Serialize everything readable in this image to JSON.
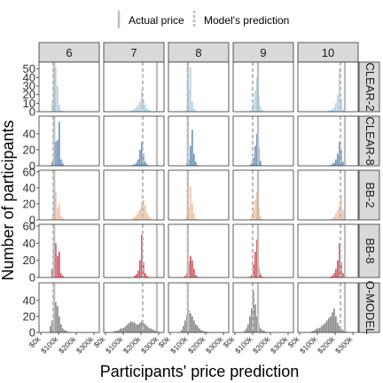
{
  "chart_data": {
    "type": "histogram",
    "title": "",
    "xlabel": "Participants' price prediction",
    "ylabel": "Number of participants",
    "legend": {
      "placement": "top",
      "entries": [
        {
          "label": "Actual price",
          "style": "solid",
          "color": "#bdbdbd"
        },
        {
          "label": "Model's prediction",
          "style": "dashed",
          "color": "#bdbdbd"
        }
      ]
    },
    "x_ticks": [
      {
        "value": 0,
        "label": "$0k"
      },
      {
        "value": 100,
        "label": "$100k"
      },
      {
        "value": 200,
        "label": "$200k"
      },
      {
        "value": 300,
        "label": "$300k"
      }
    ],
    "xlim": [
      -10,
      330
    ],
    "bin_width": 10,
    "columns": [
      "6",
      "7",
      "8",
      "9",
      "10"
    ],
    "rows": [
      {
        "label": "CLEAR-2",
        "color": "#b3d5e6",
        "ylim": [
          0,
          58
        ],
        "yticks": [
          0,
          10,
          20,
          30,
          40,
          50
        ]
      },
      {
        "label": "CLEAR-8",
        "color": "#6c97c1",
        "ylim": [
          0,
          62
        ],
        "yticks": [
          0,
          20,
          40
        ]
      },
      {
        "label": "BB-2",
        "color": "#f3c3a6",
        "ylim": [
          0,
          62
        ],
        "yticks": [
          0,
          20,
          40,
          60
        ]
      },
      {
        "label": "BB-8",
        "color": "#d95868",
        "ylim": [
          0,
          62
        ],
        "yticks": [
          0,
          20,
          40,
          60
        ]
      },
      {
        "label": "O-MODEL",
        "color": "#8c8c8c",
        "ylim": [
          0,
          62
        ],
        "yticks": [
          0,
          20,
          40
        ]
      }
    ],
    "actual_price": {
      "6": 76,
      "7": 290,
      "8": 100,
      "9": 130,
      "10": 255
    },
    "model_prediction": {
      "6": 70,
      "7": 210,
      "8": 98,
      "9": 100,
      "10": 230
    },
    "bins_start": [
      20,
      30,
      40,
      50,
      60,
      70,
      80,
      90,
      100,
      110,
      120,
      130,
      140,
      150,
      160,
      170,
      180,
      190,
      200,
      210,
      220,
      230,
      240,
      250,
      260,
      270,
      280,
      290,
      300,
      310
    ],
    "counts": {
      "CLEAR-2": {
        "6": [
          0,
          0,
          0,
          0,
          12,
          50,
          52,
          30,
          8,
          2,
          1,
          0,
          0,
          0,
          0,
          0,
          0,
          0,
          0,
          0,
          0,
          0,
          0,
          0,
          0,
          0,
          0,
          0,
          0,
          0
        ],
        "7": [
          0,
          0,
          0,
          1,
          0,
          0,
          0,
          0,
          0,
          0,
          0,
          0,
          1,
          2,
          3,
          5,
          8,
          12,
          25,
          15,
          8,
          4,
          2,
          1,
          0,
          0,
          0,
          0,
          0,
          0
        ],
        "8": [
          0,
          0,
          0,
          0,
          0,
          0,
          1,
          5,
          25,
          52,
          12,
          3,
          1,
          0,
          0,
          0,
          0,
          0,
          0,
          0,
          0,
          0,
          0,
          0,
          0,
          0,
          0,
          0,
          0,
          0
        ],
        "9": [
          0,
          0,
          0,
          0,
          0,
          0,
          1,
          3,
          10,
          25,
          40,
          18,
          6,
          2,
          0,
          0,
          0,
          0,
          0,
          0,
          0,
          0,
          0,
          0,
          0,
          0,
          0,
          0,
          0,
          0
        ],
        "10": [
          0,
          0,
          0,
          0,
          0,
          0,
          0,
          0,
          0,
          0,
          0,
          0,
          0,
          0,
          1,
          2,
          3,
          5,
          10,
          20,
          50,
          15,
          3,
          0,
          0,
          0,
          0,
          0,
          0,
          0
        ]
      },
      "CLEAR-8": {
        "6": [
          0,
          0,
          0,
          0,
          5,
          15,
          30,
          32,
          55,
          8,
          3,
          0,
          0,
          0,
          0,
          0,
          0,
          0,
          0,
          0,
          0,
          0,
          0,
          0,
          0,
          0,
          0,
          0,
          0,
          0
        ],
        "7": [
          0,
          0,
          0,
          0,
          0,
          0,
          0,
          0,
          0,
          0,
          0,
          0,
          0,
          1,
          2,
          4,
          8,
          20,
          30,
          15,
          5,
          2,
          0,
          0,
          0,
          0,
          0,
          0,
          0,
          0
        ],
        "8": [
          0,
          0,
          0,
          0,
          0,
          0,
          0,
          3,
          8,
          25,
          45,
          15,
          5,
          1,
          0,
          0,
          0,
          0,
          0,
          0,
          0,
          0,
          0,
          0,
          0,
          0,
          0,
          0,
          0,
          0
        ],
        "9": [
          0,
          0,
          0,
          0,
          0,
          0,
          1,
          3,
          10,
          25,
          40,
          22,
          6,
          0,
          0,
          0,
          0,
          0,
          0,
          0,
          0,
          0,
          0,
          0,
          0,
          0,
          0,
          0,
          0,
          0
        ],
        "10": [
          0,
          0,
          0,
          0,
          0,
          0,
          0,
          0,
          0,
          0,
          0,
          0,
          0,
          0,
          0,
          1,
          2,
          4,
          8,
          15,
          30,
          20,
          5,
          0,
          0,
          0,
          0,
          0,
          0,
          0
        ]
      },
      "BB-2": {
        "6": [
          0,
          0,
          0,
          0,
          3,
          8,
          35,
          15,
          20,
          5,
          2,
          0,
          0,
          0,
          0,
          0,
          0,
          0,
          0,
          0,
          0,
          0,
          0,
          0,
          0,
          0,
          0,
          0,
          0,
          0
        ],
        "7": [
          0,
          0,
          0,
          0,
          0,
          0,
          0,
          0,
          0,
          0,
          0,
          0,
          0,
          2,
          4,
          6,
          10,
          14,
          20,
          25,
          18,
          8,
          4,
          2,
          0,
          0,
          0,
          0,
          0,
          0
        ],
        "8": [
          0,
          0,
          0,
          0,
          0,
          0,
          1,
          5,
          15,
          42,
          20,
          8,
          2,
          0,
          0,
          0,
          0,
          0,
          0,
          0,
          0,
          0,
          0,
          0,
          0,
          0,
          0,
          0,
          0,
          0
        ],
        "9": [
          0,
          0,
          0,
          0,
          0,
          0,
          1,
          4,
          12,
          25,
          35,
          15,
          5,
          1,
          0,
          0,
          0,
          0,
          0,
          0,
          0,
          0,
          0,
          0,
          0,
          0,
          0,
          0,
          0,
          0
        ],
        "10": [
          0,
          0,
          0,
          0,
          0,
          0,
          0,
          0,
          0,
          0,
          0,
          0,
          0,
          0,
          0,
          1,
          2,
          4,
          8,
          12,
          18,
          30,
          12,
          2,
          0,
          0,
          0,
          0,
          0,
          0
        ]
      },
      "BB-8": {
        "6": [
          0,
          0,
          0,
          0,
          10,
          38,
          40,
          25,
          30,
          5,
          2,
          0,
          0,
          0,
          0,
          0,
          0,
          0,
          0,
          0,
          0,
          0,
          0,
          0,
          0,
          0,
          0,
          0,
          0,
          0
        ],
        "7": [
          0,
          0,
          0,
          0,
          0,
          0,
          0,
          0,
          0,
          0,
          0,
          0,
          0,
          0,
          2,
          4,
          8,
          20,
          50,
          18,
          5,
          2,
          0,
          0,
          0,
          0,
          0,
          0,
          0,
          0
        ],
        "8": [
          0,
          0,
          0,
          0,
          0,
          0,
          2,
          5,
          18,
          25,
          20,
          10,
          3,
          1,
          0,
          0,
          0,
          0,
          0,
          0,
          0,
          0,
          0,
          0,
          0,
          0,
          0,
          0,
          0,
          0
        ],
        "9": [
          0,
          0,
          0,
          0,
          0,
          0,
          1,
          3,
          15,
          30,
          44,
          12,
          4,
          1,
          0,
          0,
          0,
          0,
          0,
          0,
          0,
          0,
          0,
          0,
          0,
          0,
          0,
          0,
          0,
          0
        ],
        "10": [
          0,
          0,
          0,
          0,
          0,
          0,
          0,
          0,
          0,
          0,
          0,
          0,
          0,
          0,
          0,
          1,
          2,
          5,
          10,
          20,
          40,
          18,
          5,
          1,
          0,
          0,
          0,
          0,
          0,
          0
        ]
      },
      "O-MODEL": {
        "6": [
          0,
          0,
          0,
          8,
          15,
          25,
          38,
          33,
          20,
          10,
          5,
          3,
          2,
          1,
          0,
          0,
          0,
          0,
          0,
          0,
          0,
          0,
          0,
          0,
          0,
          0,
          0,
          0,
          0,
          0
        ],
        "7": [
          0,
          0,
          1,
          2,
          2,
          3,
          5,
          5,
          6,
          8,
          10,
          12,
          14,
          13,
          12,
          10,
          10,
          12,
          14,
          12,
          10,
          8,
          6,
          5,
          4,
          3,
          2,
          1,
          0,
          0
        ],
        "8": [
          0,
          0,
          0,
          0,
          3,
          8,
          15,
          22,
          28,
          24,
          20,
          15,
          10,
          8,
          5,
          3,
          2,
          1,
          1,
          0,
          0,
          0,
          0,
          0,
          0,
          0,
          0,
          0,
          0,
          0
        ],
        "9": [
          0,
          0,
          0,
          2,
          5,
          10,
          20,
          30,
          52,
          35,
          20,
          10,
          5,
          3,
          2,
          1,
          0,
          0,
          0,
          0,
          0,
          0,
          0,
          0,
          0,
          0,
          0,
          0,
          0,
          0
        ],
        "10": [
          0,
          0,
          0,
          0,
          1,
          2,
          3,
          5,
          5,
          6,
          8,
          10,
          12,
          15,
          18,
          20,
          25,
          30,
          20,
          12,
          8,
          5,
          3,
          2,
          1,
          0,
          0,
          0,
          0,
          0
        ]
      }
    }
  }
}
